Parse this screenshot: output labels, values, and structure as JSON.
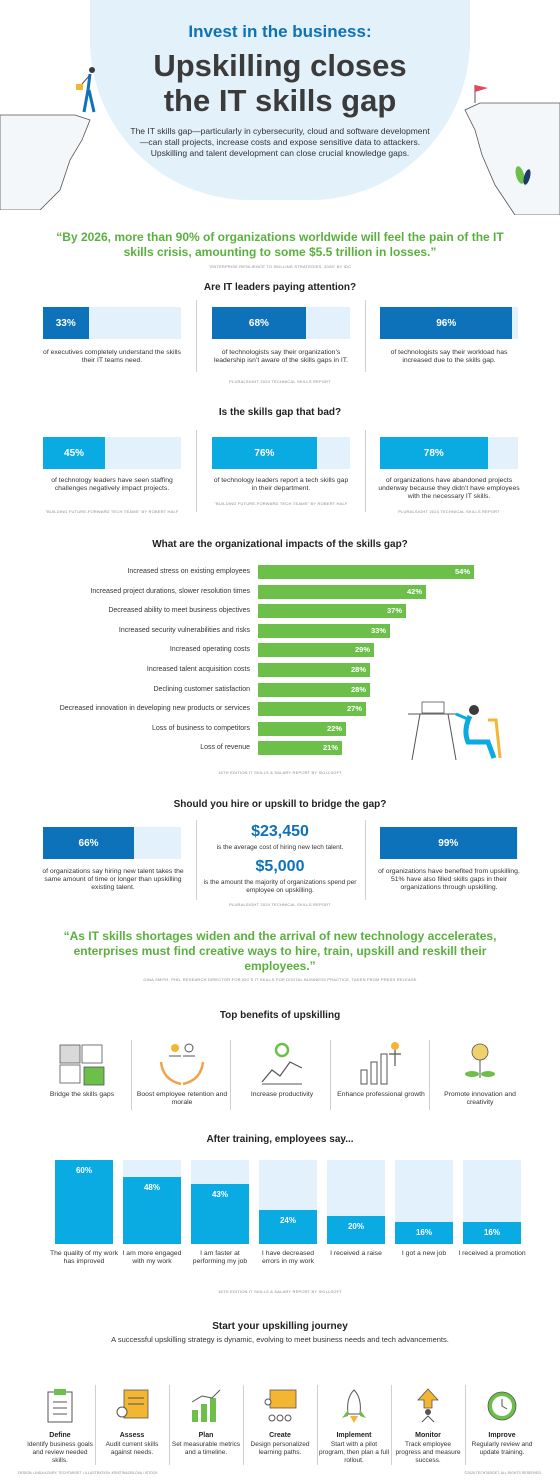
{
  "header": {
    "kicker": "Invest in the business:",
    "headline_line1": "Upskilling closes",
    "headline_line2": "the IT skills gap",
    "intro": "The IT skills gap—particularly in cybersecurity, cloud and software development—can stall projects, increase costs and expose sensitive data to attackers. Upskilling and talent development can close crucial knowledge gaps."
  },
  "quote1": {
    "text": "“By 2026, more than 90% of organizations worldwide will feel the pain of the IT skills crisis, amounting to some $5.5 trillion in losses.”",
    "source": "\"Enterprise resilience to skilling strategies, 2025\" by IDC"
  },
  "attention": {
    "title": "Are IT leaders paying attention?",
    "stats": [
      {
        "value": 33,
        "label": "33%",
        "text": "of executives completely understand the skills their IT teams need."
      },
      {
        "value": 68,
        "label": "68%",
        "text": "of technologists say their organization’s leadership isn’t aware of the skills gaps in IT."
      },
      {
        "value": 96,
        "label": "96%",
        "text": "of technologists say their workload has increased due to the skills gap."
      }
    ],
    "source": "Pluralsight 2024 Technical Skills Report"
  },
  "skills_gap": {
    "title": "Is the skills gap that bad?",
    "stats": [
      {
        "value": 45,
        "label": "45%",
        "text": "of technology leaders have seen staffing challenges negatively impact projects.",
        "source": "\"Building Future-Forward Tech Teams\" by Robert Half"
      },
      {
        "value": 76,
        "label": "76%",
        "text": "of technology leaders report a tech skills gap in their department.",
        "source": "\"Building Future-Forward Tech Teams\" by Robert Half"
      },
      {
        "value": 78,
        "label": "78%",
        "text": "of organizations have abandoned projects underway because they didn’t have employees with the necessary IT skills.",
        "source": "Pluralsight 2024 Technical Skills Report"
      }
    ]
  },
  "chart_data": [
    {
      "type": "bar",
      "orientation": "horizontal",
      "title": "What are the organizational impacts of the skills gap?",
      "categories": [
        "Increased stress on existing employees",
        "Increased project durations, slower resolution times",
        "Decreased ability to meet business objectives",
        "Increased security vulnerabilities and risks",
        "Increased operating costs",
        "Increased talent acquisition costs",
        "Declining customer satisfaction",
        "Decreased innovation in developing new products or services",
        "Loss of business to competitors",
        "Loss of revenue"
      ],
      "values": [
        54,
        42,
        37,
        33,
        29,
        28,
        28,
        27,
        22,
        21
      ],
      "value_labels": [
        "54%",
        "42%",
        "37%",
        "33%",
        "29%",
        "28%",
        "28%",
        "27%",
        "22%",
        "21%"
      ],
      "xlim": [
        0,
        60
      ],
      "grid": false,
      "color": "#6cc04a",
      "source": "16th Edition IT Skills & Salary Report by Skillsoft"
    },
    {
      "type": "bar",
      "orientation": "vertical",
      "title": "After training, employees say...",
      "categories": [
        "The quality of my work has improved",
        "I am more engaged with my work",
        "I am faster at performing my job",
        "I have decreased errors in my work",
        "I received a raise",
        "I got a new job",
        "I received a promotion"
      ],
      "values": [
        60,
        48,
        43,
        24,
        20,
        16,
        16
      ],
      "value_labels": [
        "60%",
        "48%",
        "43%",
        "24%",
        "20%",
        "16%",
        "16%"
      ],
      "ylim": [
        0,
        60
      ],
      "grid": false,
      "color": "#0aaae3",
      "source": "16th Edition IT Skills & Salary Report by Skillsoft"
    }
  ],
  "hire_upskill": {
    "title": "Should you hire or upskill to bridge the gap?",
    "left": {
      "value": 66,
      "label": "66%",
      "text": "of organizations say hiring new talent takes the same amount of time or longer than upskilling existing talent."
    },
    "money1": {
      "label": "$23,450",
      "text": "is the average cost of hiring new tech talent."
    },
    "money2": {
      "label": "$5,000",
      "text": "is the amount the majority of organizations spend per employee on upskilling."
    },
    "right": {
      "value": 99,
      "label": "99%",
      "text": "of organizations have benefited from upskilling. 51% have also filled skills gaps in their organizations through upskilling."
    },
    "source": "Pluralsight 2024 Technical Skills Report"
  },
  "quote2": {
    "text": "“As IT skills shortages widen and the arrival of new technology accelerates, enterprises must find creative ways to hire, train, upskill and reskill their employees.”",
    "source": "Gina Smith, PhD, research director for IDC's IT Skills for Digital Business practice, taken from press release"
  },
  "benefits": {
    "title": "Top benefits of upskilling",
    "items": [
      {
        "label": "Bridge the skills gaps",
        "icon": "puzzle-icon"
      },
      {
        "label": "Boost employee retention and morale",
        "icon": "hands-people-icon"
      },
      {
        "label": "Increase productivity",
        "icon": "gear-chart-icon"
      },
      {
        "label": "Enhance professional growth",
        "icon": "growth-person-icon"
      },
      {
        "label": "Promote innovation and creativity",
        "icon": "lightbulb-plant-icon"
      }
    ]
  },
  "journey": {
    "title": "Start your upskilling journey",
    "subtitle": "A successful upskilling strategy is dynamic, evolving to meet business needs and tech advancements.",
    "steps": [
      {
        "title": "Define",
        "text": "Identify business goals and review needed skills.",
        "icon": "clipboard-icon"
      },
      {
        "title": "Assess",
        "text": "Audit current skills against needs.",
        "icon": "assess-list-icon"
      },
      {
        "title": "Plan",
        "text": "Set measurable metrics and a timeline.",
        "icon": "plan-chart-icon"
      },
      {
        "title": "Create",
        "text": "Design personalized learning paths.",
        "icon": "presentation-icon"
      },
      {
        "title": "Implement",
        "text": "Start with a pilot program, then plan a full rollout.",
        "icon": "rocket-icon"
      },
      {
        "title": "Monitor",
        "text": "Track employee progress and measure success.",
        "icon": "person-arrow-icon"
      },
      {
        "title": "Improve",
        "text": "Regularly review and update training.",
        "icon": "clock-cycle-icon"
      }
    ]
  },
  "footer": {
    "left": "Design: Linda Koury, TechTarget • Illustration: KristinaOrlova / iStock",
    "right": "©2025 TechTarget. All rights reserved."
  },
  "colors": {
    "blue": "#0d72b9",
    "light_blue": "#e2f1fc",
    "cyan": "#0aaae3",
    "green": "#6cc04a",
    "quote_green": "#5ab03e"
  }
}
